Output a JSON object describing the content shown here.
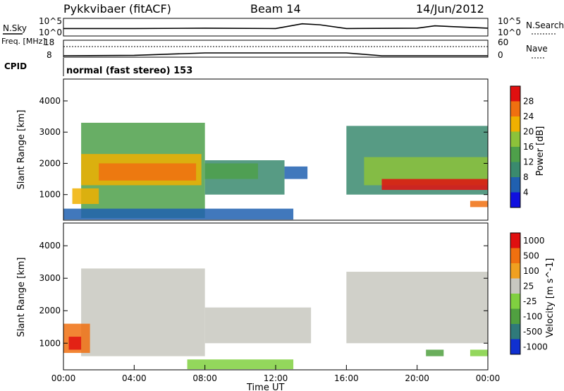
{
  "header": {
    "station": "Pykkvibaer (fitACF)",
    "beam": "Beam 14",
    "date": "14/Jun/2012"
  },
  "chart_data": [
    {
      "type": "line",
      "panel": "noise",
      "left_label": "N.Sky",
      "right_label": "N.Search",
      "left_ticks": [
        "10^5",
        "10^0"
      ],
      "right_ticks": [
        "10^5",
        "10^0"
      ],
      "x": [
        "00:00",
        "04:00",
        "08:00",
        "12:00",
        "13:30",
        "14:30",
        "16:00",
        "20:00",
        "21:00",
        "00:00"
      ],
      "series": [
        {
          "values": [
            2.2,
            2.2,
            2.3,
            2.2,
            3.6,
            3.3,
            2.2,
            2.3,
            3.0,
            2.3
          ]
        }
      ]
    },
    {
      "type": "line",
      "panel": "frequency",
      "left_label": "Freq. [MHz]",
      "right_label": "Nave",
      "left_ticks": [
        "18",
        "8"
      ],
      "right_ticks": [
        "60",
        "0"
      ],
      "x": [
        "00:00",
        "04:00",
        "08:00",
        "12:00",
        "16:00",
        "18:00",
        "20:00",
        "00:00"
      ],
      "series": [
        {
          "values": [
            9.0,
            9.3,
            11.0,
            11.0,
            11.0,
            9.0,
            9.0,
            9.0
          ]
        },
        {
          "values": [
            45,
            45,
            45,
            45,
            45,
            45,
            45,
            45
          ]
        }
      ]
    },
    {
      "type": "text",
      "panel": "cpid",
      "label": "CPID",
      "value": "normal (fast stereo) 153"
    },
    {
      "type": "heatmap",
      "panel": "power",
      "ylabel": "Slant Range [km]",
      "yticks": [
        1000,
        2000,
        3000,
        4000
      ],
      "ylim": [
        180,
        4700
      ],
      "xlim": [
        0,
        24
      ],
      "colorbar_label": "Power [dB]",
      "colorbar_ticks": [
        "4",
        "8",
        "12",
        "16",
        "20",
        "24",
        "28"
      ],
      "colors": [
        "#1010e0",
        "#2060b0",
        "#3a8a6e",
        "#4ea04a",
        "#8cc23a",
        "#f0b000",
        "#f07010",
        "#e01010"
      ],
      "regions": [
        {
          "t0": 1.0,
          "t1": 8.0,
          "r0": 250,
          "r1": 3300,
          "level": 3
        },
        {
          "t0": 1.0,
          "t1": 7.8,
          "r0": 1300,
          "r1": 2300,
          "level": 5
        },
        {
          "t0": 2.0,
          "t1": 7.5,
          "r0": 1450,
          "r1": 2000,
          "level": 6
        },
        {
          "t0": 0.5,
          "t1": 2.0,
          "r0": 700,
          "r1": 1200,
          "level": 5
        },
        {
          "t0": 8.0,
          "t1": 12.5,
          "r0": 1000,
          "r1": 2100,
          "level": 2
        },
        {
          "t0": 8.0,
          "t1": 11.0,
          "r0": 1500,
          "r1": 2000,
          "level": 3
        },
        {
          "t0": 12.5,
          "t1": 13.8,
          "r0": 1500,
          "r1": 1900,
          "level": 1
        },
        {
          "t0": 16.0,
          "t1": 24.0,
          "r0": 1000,
          "r1": 3200,
          "level": 2
        },
        {
          "t0": 17.0,
          "t1": 24.0,
          "r0": 1300,
          "r1": 2200,
          "level": 4
        },
        {
          "t0": 18.0,
          "t1": 24.0,
          "r0": 1150,
          "r1": 1500,
          "level": 7
        },
        {
          "t0": 23.0,
          "t1": 24.0,
          "r0": 600,
          "r1": 800,
          "level": 6
        },
        {
          "t0": 0.0,
          "t1": 13.0,
          "r0": 200,
          "r1": 550,
          "level": 1
        }
      ]
    },
    {
      "type": "heatmap",
      "panel": "velocity",
      "ylabel": "Slant Range [km]",
      "yticks": [
        1000,
        2000,
        3000,
        4000
      ],
      "ylim": [
        180,
        4700
      ],
      "xlim": [
        0,
        24
      ],
      "xlabel": "Time UT",
      "xticks": [
        "00:00",
        "04:00",
        "08:00",
        "12:00",
        "16:00",
        "20:00",
        "00:00"
      ],
      "colorbar_label": "Velocity [m s^-1]",
      "colorbar_ticks": [
        "1000",
        "500",
        "100",
        "25",
        "-25",
        "-100",
        "-500",
        "-1000"
      ],
      "colors": [
        "#1030d0",
        "#2f7a7a",
        "#50a040",
        "#80d040",
        "#c8c8c0",
        "#f0a020",
        "#f07010",
        "#e01010"
      ],
      "regions": [
        {
          "t0": 1.0,
          "t1": 8.0,
          "r0": 600,
          "r1": 3300,
          "level": 4
        },
        {
          "t0": 8.0,
          "t1": 14.0,
          "r0": 1000,
          "r1": 2100,
          "level": 4
        },
        {
          "t0": 16.0,
          "t1": 24.0,
          "r0": 1000,
          "r1": 3200,
          "level": 4
        },
        {
          "t0": 0.0,
          "t1": 1.5,
          "r0": 700,
          "r1": 1600,
          "level": 6
        },
        {
          "t0": 0.3,
          "t1": 1.0,
          "r0": 800,
          "r1": 1200,
          "level": 7
        },
        {
          "t0": 23.0,
          "t1": 24.0,
          "r0": 600,
          "r1": 800,
          "level": 3
        },
        {
          "t0": 20.5,
          "t1": 21.5,
          "r0": 600,
          "r1": 800,
          "level": 2
        },
        {
          "t0": 7.0,
          "t1": 13.0,
          "r0": 200,
          "r1": 500,
          "level": 3
        }
      ]
    }
  ]
}
